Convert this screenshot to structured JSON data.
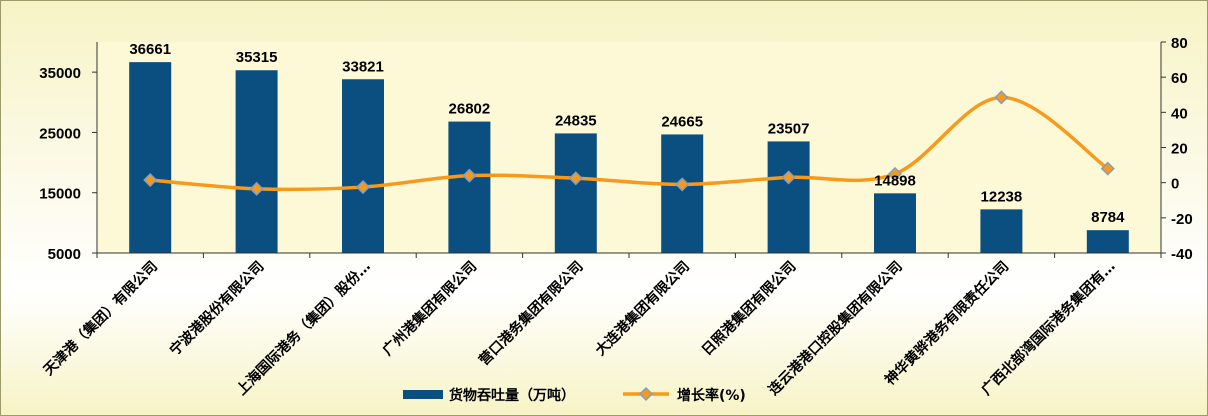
{
  "chart_data": {
    "type": "bar",
    "categories": [
      "天津港（集团）有限公司",
      "宁波港股份有限公司",
      "上海国际港务（集团）股份…",
      "广州港集团有限公司",
      "营口港务集团有限公司",
      "大连港集团有限公司",
      "日照港集团有限公司",
      "连云港港口控股集团有限公司",
      "神华黄骅港务有限责任公司",
      "广西北部湾国际港务集团有…"
    ],
    "series": [
      {
        "name": "货物吞吐量（万吨）",
        "type": "bar",
        "axis": "left",
        "color": "#0b4f80",
        "values": [
          36661,
          35315,
          33821,
          26802,
          24835,
          24665,
          23507,
          14898,
          12238,
          8784
        ]
      },
      {
        "name": "增长率(%)",
        "type": "line",
        "axis": "right",
        "color": "#f79a1c",
        "marker_color": "#7f9fc4",
        "values": [
          1.5,
          -3.5,
          -2.5,
          4.0,
          2.5,
          -1.0,
          3.0,
          5.0,
          48.5,
          8.0
        ]
      }
    ],
    "left_axis": {
      "min": 5000,
      "max": 40000,
      "ticks": [
        "5000",
        "15000",
        "25000",
        "35000"
      ],
      "tick_values": [
        5000,
        15000,
        25000,
        35000
      ]
    },
    "right_axis": {
      "min": -40,
      "max": 80,
      "ticks": [
        "-40",
        "-20",
        "0",
        "20",
        "40",
        "60",
        "80"
      ],
      "tick_values": [
        -40,
        -20,
        0,
        20,
        40,
        60,
        80
      ]
    },
    "data_labels": [
      "36661",
      "35315",
      "33821",
      "26802",
      "24835",
      "24665",
      "23507",
      "14898",
      "12238",
      "8784"
    ],
    "title": "",
    "xlabel": "",
    "ylabel": "",
    "grid": false,
    "legend_position": "bottom"
  }
}
